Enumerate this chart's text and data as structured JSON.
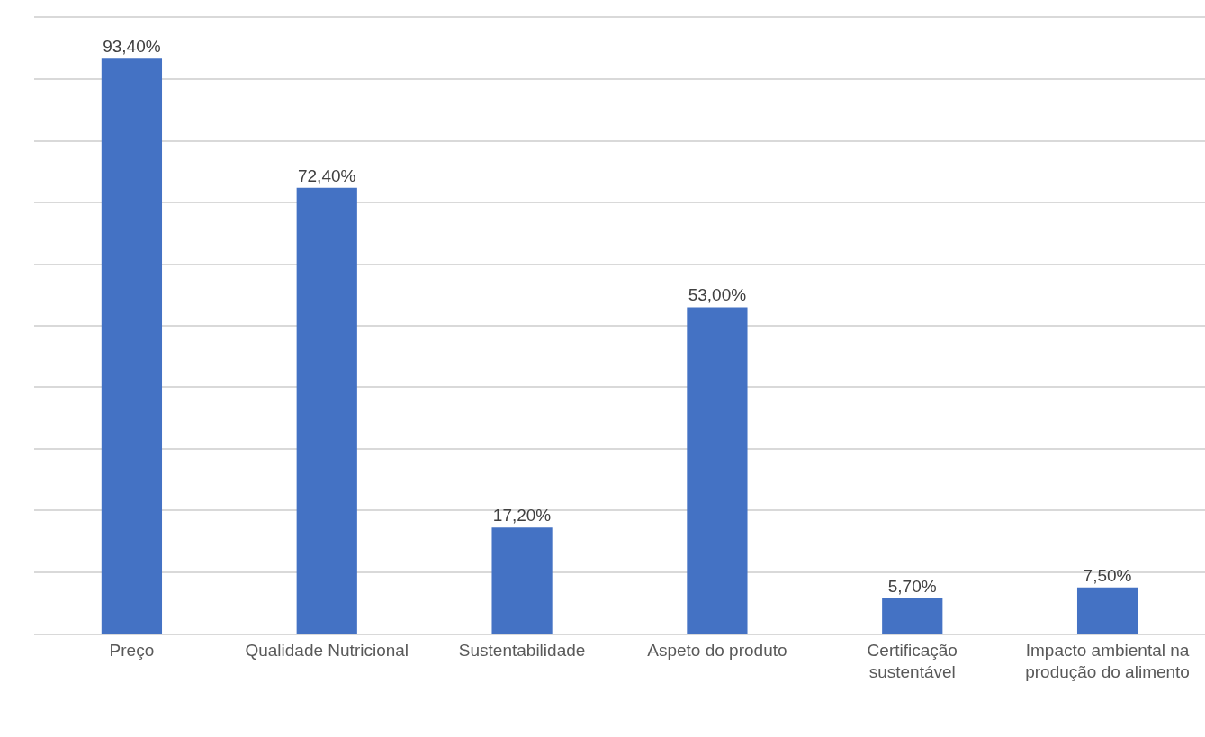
{
  "chart_data": {
    "type": "bar",
    "categories": [
      "Preço",
      "Qualidade Nutricional",
      "Sustentabilidade",
      "Aspeto do produto",
      "Certificação sustentável",
      "Impacto ambiental na produção do alimento"
    ],
    "values": [
      93.4,
      72.4,
      17.2,
      53.0,
      5.7,
      7.5
    ],
    "value_labels": [
      "93,40%",
      "72,40%",
      "17,20%",
      "53,00%",
      "5,70%",
      "7,50%"
    ],
    "color": "#4472c4",
    "ylim": [
      0,
      100
    ],
    "yticks": [
      {
        "value": 0,
        "label": null
      },
      {
        "value": 10,
        "label": null
      },
      {
        "value": 20,
        "label": null
      },
      {
        "value": 30,
        "label": null
      },
      {
        "value": 40,
        "label": null
      },
      {
        "value": 50,
        "label": null
      },
      {
        "value": 60,
        "label": null
      },
      {
        "value": 70,
        "label": null
      },
      {
        "value": 80,
        "label": null
      },
      {
        "value": 90,
        "label": null
      },
      {
        "value": 100,
        "label": null
      }
    ],
    "grid": "y",
    "tick_labels": "x"
  }
}
